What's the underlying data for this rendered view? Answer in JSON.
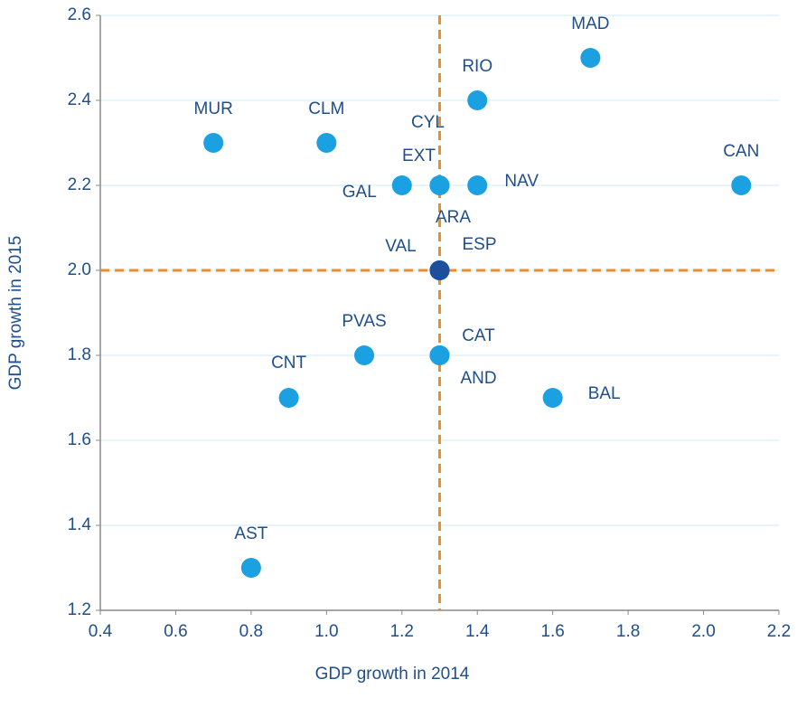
{
  "chart_data": {
    "type": "scatter",
    "xlabel": "GDP growth in 2014",
    "ylabel": "GDP growth in 2015",
    "xlim": [
      0.4,
      2.2
    ],
    "ylim": [
      1.2,
      2.6
    ],
    "xticks": [
      0.4,
      0.6,
      0.8,
      {
        "value": 1.0,
        "label": "1.0"
      },
      1.2,
      1.4,
      1.6,
      1.8,
      {
        "value": 2.0,
        "label": "2.0"
      },
      2.2
    ],
    "yticks": [
      1.2,
      1.4,
      1.6,
      1.8,
      {
        "value": 2.0,
        "label": "2.0"
      },
      2.2,
      2.4,
      2.6
    ],
    "grid": true,
    "color": "#1ba1e2",
    "reference_lines": {
      "x": 1.3,
      "y": 2.0,
      "color": "#f08c28"
    },
    "points": [
      {
        "label": "MUR",
        "x": 0.7,
        "y": 2.3
      },
      {
        "label": "CLM",
        "x": 1.0,
        "y": 2.3
      },
      {
        "label": "CYL",
        "x": 1.3,
        "y": 2.2
      },
      {
        "label": "EXT",
        "x": 1.3,
        "y": 2.2
      },
      {
        "label": "GAL",
        "x": 1.2,
        "y": 2.2
      },
      {
        "label": "NAV",
        "x": 1.4,
        "y": 2.2
      },
      {
        "label": "RIO",
        "x": 1.4,
        "y": 2.4
      },
      {
        "label": "MAD",
        "x": 1.7,
        "y": 2.5
      },
      {
        "label": "CAN",
        "x": 2.1,
        "y": 2.2
      },
      {
        "label": "ARA",
        "x": 1.3,
        "y": 2.0
      },
      {
        "label": "VAL",
        "x": 1.3,
        "y": 2.0
      },
      {
        "label": "PVAS",
        "x": 1.1,
        "y": 1.8
      },
      {
        "label": "CAT",
        "x": 1.3,
        "y": 1.8
      },
      {
        "label": "AND",
        "x": 1.3,
        "y": 1.8
      },
      {
        "label": "CNT",
        "x": 0.9,
        "y": 1.7
      },
      {
        "label": "BAL",
        "x": 1.6,
        "y": 1.7
      },
      {
        "label": "AST",
        "x": 0.8,
        "y": 1.3
      },
      {
        "label": "ESP",
        "x": 1.3,
        "y": 2.0,
        "color": "#1f4e9c"
      }
    ]
  }
}
